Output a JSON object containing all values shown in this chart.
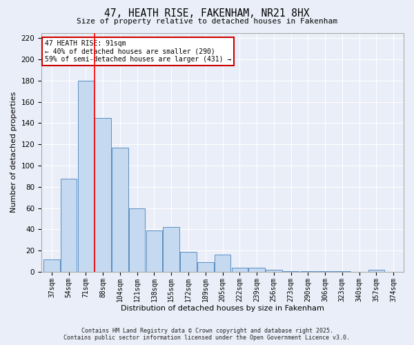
{
  "title": "47, HEATH RISE, FAKENHAM, NR21 8HX",
  "subtitle": "Size of property relative to detached houses in Fakenham",
  "xlabel": "Distribution of detached houses by size in Fakenham",
  "ylabel": "Number of detached properties",
  "categories": [
    "37sqm",
    "54sqm",
    "71sqm",
    "88sqm",
    "104sqm",
    "121sqm",
    "138sqm",
    "155sqm",
    "172sqm",
    "189sqm",
    "205sqm",
    "222sqm",
    "239sqm",
    "256sqm",
    "273sqm",
    "290sqm",
    "306sqm",
    "323sqm",
    "340sqm",
    "357sqm",
    "374sqm"
  ],
  "values": [
    12,
    88,
    180,
    145,
    117,
    60,
    39,
    42,
    19,
    9,
    16,
    4,
    4,
    2,
    1,
    1,
    1,
    1,
    0,
    2,
    0
  ],
  "bar_color": "#c5d9f0",
  "bar_edge_color": "#5a8fc3",
  "red_line_x": 2.5,
  "annotation_title": "47 HEATH RISE: 91sqm",
  "annotation_line1": "← 40% of detached houses are smaller (290)",
  "annotation_line2": "59% of semi-detached houses are larger (431) →",
  "annotation_box_color": "#ffffff",
  "annotation_border_color": "#cc0000",
  "ylim": [
    0,
    225
  ],
  "yticks": [
    0,
    20,
    40,
    60,
    80,
    100,
    120,
    140,
    160,
    180,
    200,
    220
  ],
  "background_color": "#eaeef8",
  "grid_color": "#ffffff",
  "footer_line1": "Contains HM Land Registry data © Crown copyright and database right 2025.",
  "footer_line2": "Contains public sector information licensed under the Open Government Licence v3.0."
}
